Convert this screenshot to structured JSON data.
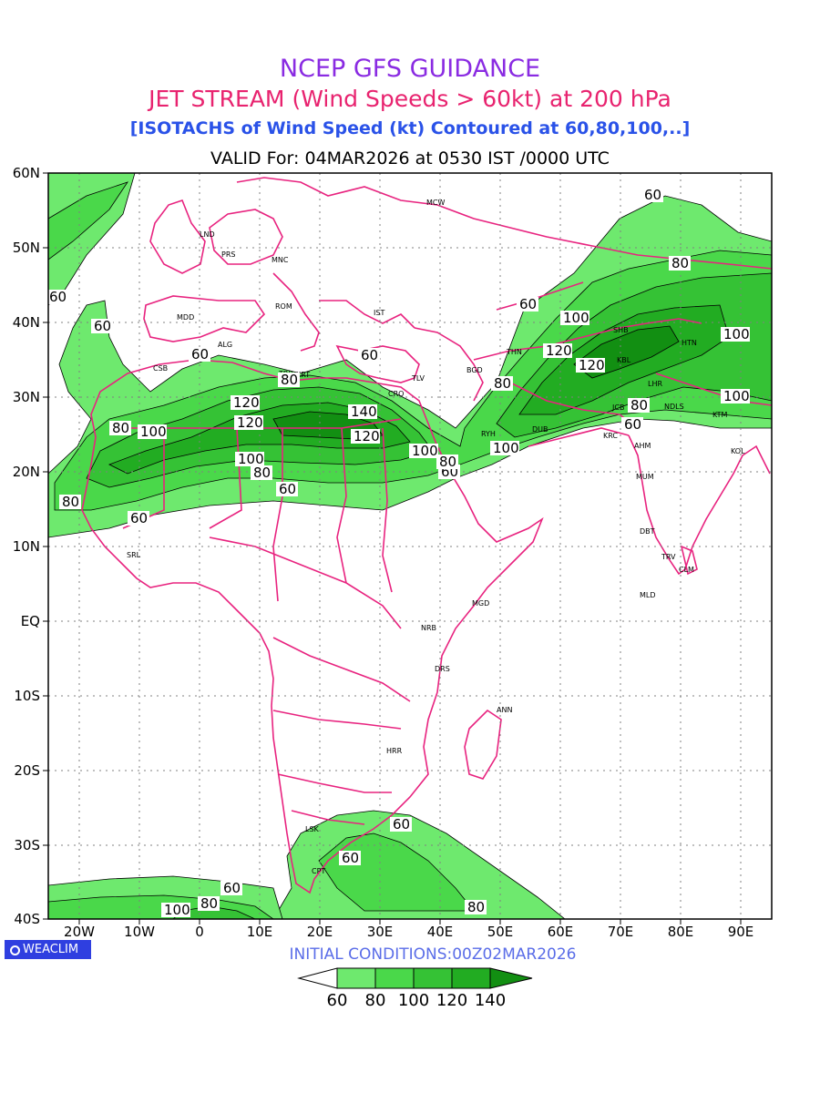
{
  "titles": {
    "line1": "NCEP GFS GUIDANCE",
    "line2": "JET STREAM (Wind Speeds > 60kt) at 200 hPa",
    "line3": "[ISOTACHS of Wind Speed (kt) Contoured at 60,80,100,..]",
    "line4": "VALID For: 04MAR2026 at 0530 IST /0000 UTC"
  },
  "colors": {
    "line1": "#8a2be2",
    "line2": "#e8236f",
    "line3": "#2a52e8",
    "line4": "#000000",
    "borders": "#e8237f",
    "shade60": "#6ee96e",
    "shade80": "#4ad84a",
    "shade100": "#35c235",
    "shade120": "#22ac22",
    "shade140": "#128f12"
  },
  "axes": {
    "lat_labels": [
      "60N",
      "50N",
      "40N",
      "30N",
      "20N",
      "10N",
      "EQ",
      "10S",
      "20S",
      "30S",
      "40S"
    ],
    "lon_labels": [
      "20W",
      "10W",
      "0",
      "10E",
      "20E",
      "30E",
      "40E",
      "50E",
      "60E",
      "70E",
      "80E",
      "90E"
    ]
  },
  "stations": [
    "MCW",
    "LND",
    "PRS",
    "MNC",
    "ROM",
    "IST",
    "MDD",
    "ALG",
    "CSB",
    "TRP",
    "BGD",
    "CRO",
    "THN",
    "KBL",
    "LHR",
    "NDLS",
    "HTN",
    "KTM",
    "RYH",
    "DUB",
    "KRC",
    "AHM",
    "KOL",
    "MUM",
    "DBT",
    "TRV",
    "CLM",
    "MLD",
    "SRL",
    "NRB",
    "MGD",
    "DRS",
    "ANN",
    "HRR",
    "LSK",
    "CPT",
    "SHB",
    "KRT",
    "TLV",
    "JCB"
  ],
  "contour_labels": [
    "60",
    "80",
    "100",
    "120",
    "140"
  ],
  "logo": "WEACLIM",
  "initial_conditions": "INITIAL CONDITIONS:00Z02MAR2026",
  "legend": {
    "levels": [
      "60",
      "80",
      "100",
      "120",
      "140"
    ]
  }
}
